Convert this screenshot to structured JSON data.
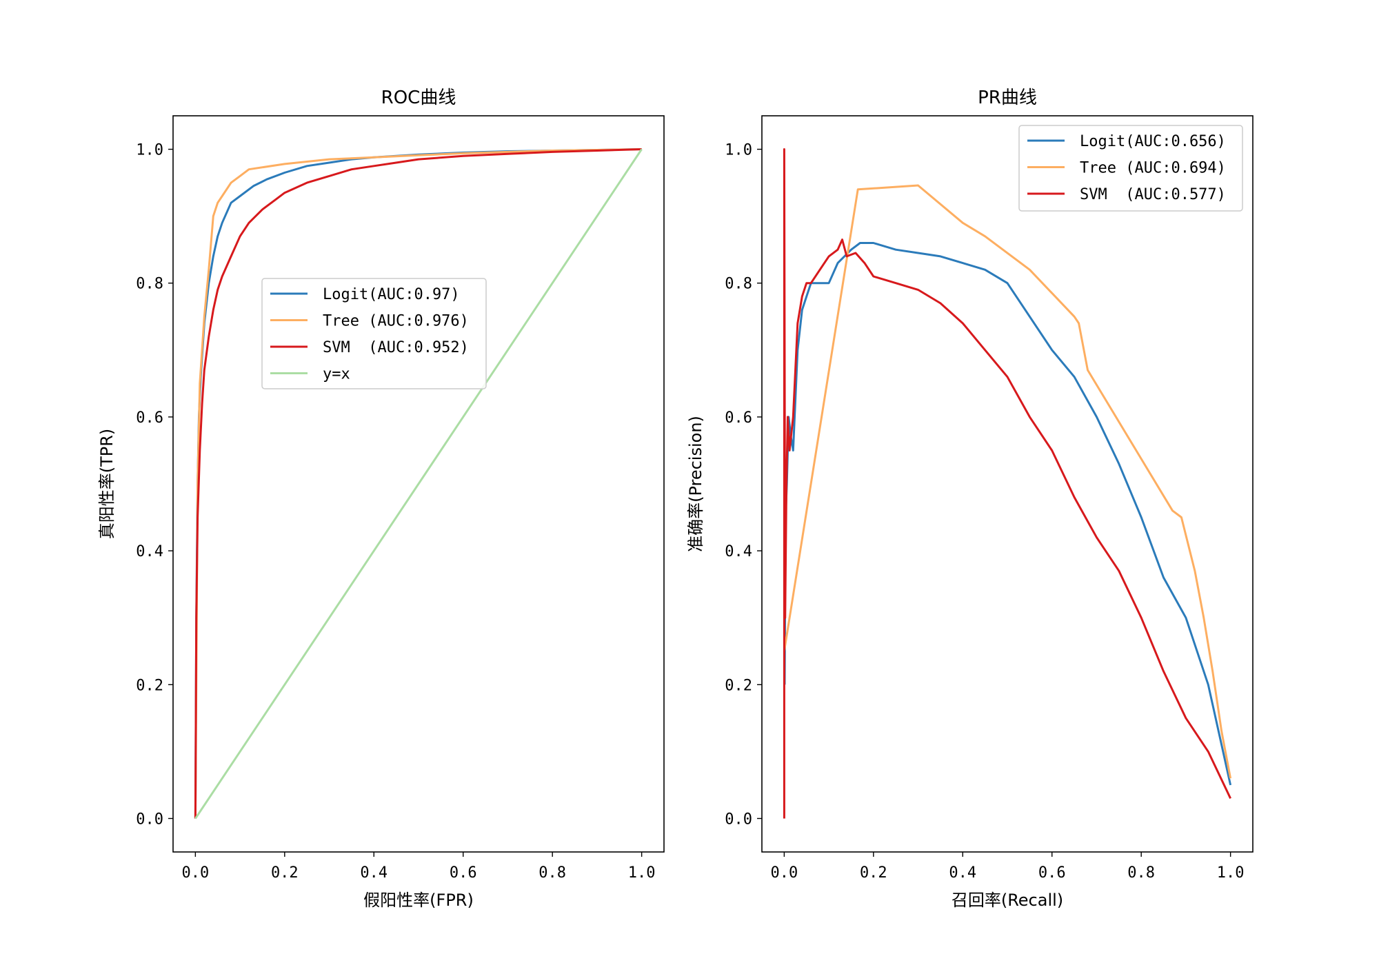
{
  "chart_data": [
    {
      "type": "line",
      "title": "ROC曲线",
      "xlabel": "假阳性率(FPR)",
      "ylabel": "真阳性率(TPR)",
      "xlim": [
        -0.05,
        1.05
      ],
      "ylim": [
        -0.05,
        1.05
      ],
      "xticks": [
        "0.0",
        "0.2",
        "0.4",
        "0.6",
        "0.8",
        "1.0"
      ],
      "yticks": [
        "0.0",
        "0.2",
        "0.4",
        "0.6",
        "0.8",
        "1.0"
      ],
      "legend_position": "center",
      "grid": false,
      "series": [
        {
          "name": "Logit(AUC:0.97)",
          "color": "#2b7bba",
          "x": [
            0,
            0.002,
            0.005,
            0.008,
            0.012,
            0.02,
            0.03,
            0.04,
            0.05,
            0.06,
            0.08,
            0.1,
            0.13,
            0.16,
            0.2,
            0.25,
            0.3,
            0.35,
            0.4,
            0.5,
            0.6,
            0.7,
            0.8,
            0.9,
            1.0
          ],
          "y": [
            0,
            0.3,
            0.5,
            0.6,
            0.66,
            0.74,
            0.8,
            0.84,
            0.87,
            0.89,
            0.92,
            0.93,
            0.945,
            0.955,
            0.965,
            0.975,
            0.98,
            0.985,
            0.988,
            0.992,
            0.995,
            0.997,
            0.998,
            0.999,
            1.0
          ]
        },
        {
          "name": "Tree (AUC:0.976)",
          "color": "#fdae61",
          "x": [
            0,
            0.005,
            0.01,
            0.02,
            0.03,
            0.04,
            0.05,
            0.06,
            0.08,
            0.1,
            0.12,
            0.2,
            0.3,
            0.4,
            0.5,
            0.6,
            0.7,
            0.8,
            0.9,
            1.0
          ],
          "y": [
            0,
            0.5,
            0.65,
            0.75,
            0.82,
            0.9,
            0.92,
            0.93,
            0.95,
            0.96,
            0.97,
            0.978,
            0.985,
            0.988,
            0.991,
            0.994,
            0.996,
            0.998,
            0.999,
            1.0
          ]
        },
        {
          "name": "SVM  (AUC:0.952)",
          "color": "#d7191c",
          "x": [
            0,
            0.002,
            0.005,
            0.01,
            0.015,
            0.02,
            0.03,
            0.04,
            0.05,
            0.06,
            0.08,
            0.1,
            0.12,
            0.15,
            0.18,
            0.2,
            0.25,
            0.3,
            0.35,
            0.4,
            0.45,
            0.5,
            0.6,
            0.7,
            0.8,
            0.9,
            1.0
          ],
          "y": [
            0,
            0.3,
            0.45,
            0.55,
            0.62,
            0.67,
            0.72,
            0.76,
            0.79,
            0.81,
            0.84,
            0.87,
            0.89,
            0.91,
            0.925,
            0.935,
            0.95,
            0.96,
            0.97,
            0.975,
            0.98,
            0.985,
            0.99,
            0.993,
            0.996,
            0.998,
            1.0
          ]
        },
        {
          "name": "y=x",
          "color": "#abdda4",
          "x": [
            0,
            1
          ],
          "y": [
            0,
            1
          ]
        }
      ]
    },
    {
      "type": "line",
      "title": "PR曲线",
      "xlabel": "召回率(Recall)",
      "ylabel": "准确率(Precision)",
      "xlim": [
        -0.05,
        1.05
      ],
      "ylim": [
        -0.05,
        1.05
      ],
      "xticks": [
        "0.0",
        "0.2",
        "0.4",
        "0.6",
        "0.8",
        "1.0"
      ],
      "yticks": [
        "0.0",
        "0.2",
        "0.4",
        "0.6",
        "0.8",
        "1.0"
      ],
      "legend_position": "upper right",
      "grid": false,
      "series": [
        {
          "name": "Logit(AUC:0.656)",
          "color": "#2b7bba",
          "x": [
            0.001,
            0.003,
            0.006,
            0.01,
            0.015,
            0.02,
            0.03,
            0.04,
            0.05,
            0.06,
            0.08,
            0.1,
            0.12,
            0.15,
            0.17,
            0.2,
            0.25,
            0.3,
            0.35,
            0.4,
            0.45,
            0.5,
            0.55,
            0.6,
            0.65,
            0.7,
            0.75,
            0.8,
            0.85,
            0.9,
            0.95,
            0.98,
            1.0
          ],
          "y": [
            0.2,
            0.45,
            0.5,
            0.6,
            0.57,
            0.55,
            0.7,
            0.76,
            0.78,
            0.8,
            0.8,
            0.8,
            0.83,
            0.85,
            0.86,
            0.86,
            0.85,
            0.845,
            0.84,
            0.83,
            0.82,
            0.8,
            0.75,
            0.7,
            0.66,
            0.6,
            0.53,
            0.45,
            0.36,
            0.3,
            0.2,
            0.11,
            0.05
          ]
        },
        {
          "name": "Tree (AUC:0.694)",
          "color": "#fdae61",
          "x": [
            0,
            0.165,
            0.3,
            0.4,
            0.45,
            0.55,
            0.65,
            0.66,
            0.68,
            0.87,
            0.89,
            0.92,
            0.94,
            0.96,
            0.98,
            1.0
          ],
          "y": [
            0.25,
            0.94,
            0.946,
            0.89,
            0.87,
            0.82,
            0.75,
            0.74,
            0.67,
            0.46,
            0.45,
            0.37,
            0.3,
            0.22,
            0.13,
            0.06
          ]
        },
        {
          "name": "SVM  (AUC:0.577)",
          "color": "#d7191c",
          "x": [
            0,
            0,
            0.002,
            0.005,
            0.008,
            0.012,
            0.02,
            0.03,
            0.04,
            0.05,
            0.06,
            0.08,
            0.1,
            0.12,
            0.13,
            0.14,
            0.16,
            0.18,
            0.2,
            0.25,
            0.3,
            0.35,
            0.4,
            0.45,
            0.5,
            0.55,
            0.6,
            0.65,
            0.7,
            0.75,
            0.8,
            0.85,
            0.9,
            0.95,
            1.0
          ],
          "y": [
            0,
            1.0,
            0.3,
            0.5,
            0.6,
            0.55,
            0.6,
            0.74,
            0.78,
            0.8,
            0.8,
            0.82,
            0.84,
            0.85,
            0.865,
            0.84,
            0.845,
            0.83,
            0.81,
            0.8,
            0.79,
            0.77,
            0.74,
            0.7,
            0.66,
            0.6,
            0.55,
            0.48,
            0.42,
            0.37,
            0.3,
            0.22,
            0.15,
            0.1,
            0.03
          ]
        }
      ]
    }
  ]
}
